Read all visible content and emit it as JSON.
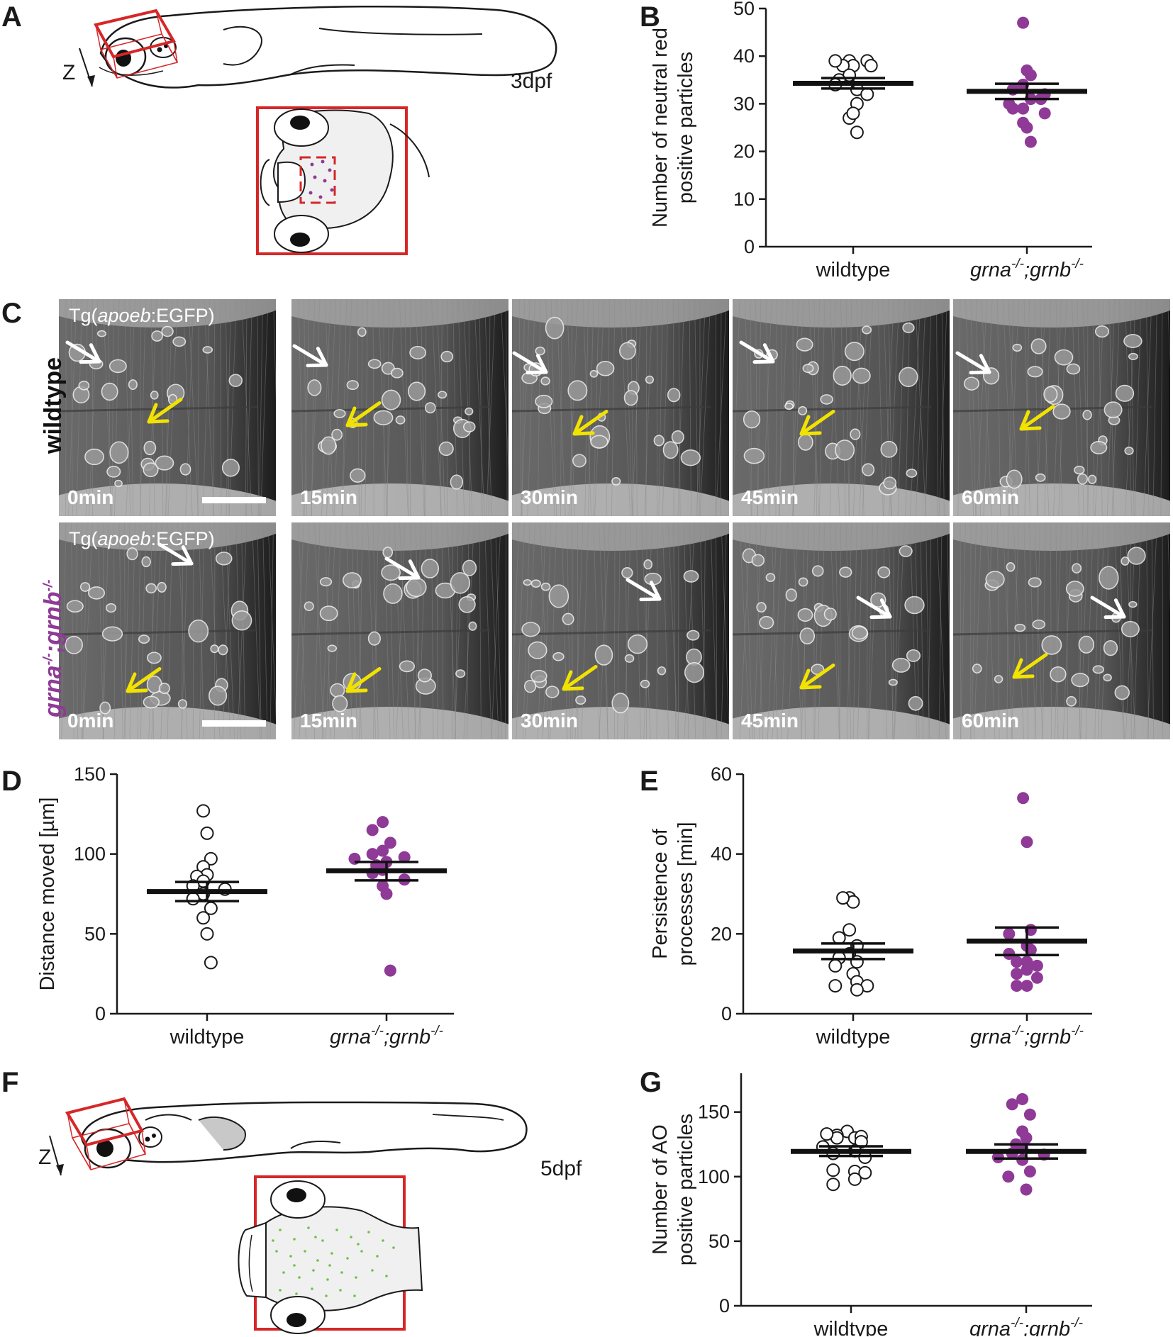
{
  "panels": {
    "A": {
      "letter": "A",
      "stage_label": "3dpf",
      "axis_label": "Z"
    },
    "B": {
      "letter": "B"
    },
    "C": {
      "letter": "C",
      "row_labels": {
        "wildtype": "wildtype",
        "mutant_main": "grna",
        "mutant_sup1": "-/-",
        "mutant_sep": ";",
        "mutant_main2": "grnb",
        "mutant_sup2": "-/-"
      },
      "transgene": {
        "prefix": "Tg(",
        "gene": "apoeb",
        "suffix": ":EGFP)"
      },
      "times": [
        "0min",
        "15min",
        "30min",
        "45min",
        "60min"
      ]
    },
    "D": {
      "letter": "D"
    },
    "E": {
      "letter": "E"
    },
    "F": {
      "letter": "F",
      "stage_label": "5dpf",
      "axis_label": "Z"
    },
    "G": {
      "letter": "G"
    }
  },
  "genotype_labels": {
    "wildtype": "wildtype",
    "mutant_a": "grna",
    "mutant_sup": "-/-",
    "mutant_sep": ";",
    "mutant_b": "grnb"
  },
  "colors": {
    "mutant": "#8e3a96",
    "wildtype_fill": "#ffffff",
    "box": "#d62728",
    "yellow_arrow": "#f2e200",
    "ao_dots": "#6cc24a"
  },
  "chart_data": [
    {
      "panel": "B",
      "type": "scatter",
      "ylabel_line1": "Number of neutral red",
      "ylabel_line2": "positive particles",
      "ylim": [
        0,
        50
      ],
      "yticks": [
        0,
        10,
        20,
        30,
        40,
        50
      ],
      "categories": [
        "wildtype",
        "grna-/-;grnb-/-"
      ],
      "series": [
        {
          "values": [
            39,
            38,
            38,
            39,
            39,
            38,
            36,
            35,
            33,
            34,
            32,
            30,
            27,
            28,
            24
          ],
          "mean": 34.3,
          "sem_range": [
            33.2,
            35.4
          ]
        },
        {
          "values": [
            47,
            37,
            36,
            34,
            33,
            31,
            30,
            31,
            32,
            29,
            29,
            28,
            26,
            25,
            22
          ],
          "mean": 32.6,
          "sem_range": [
            31.0,
            34.2
          ]
        }
      ]
    },
    {
      "panel": "D",
      "type": "scatter",
      "ylabel_line1": "Distance moved [µm]",
      "ylabel_line2": "",
      "ylim": [
        0,
        150
      ],
      "yticks": [
        0,
        50,
        100,
        150
      ],
      "categories": [
        "wildtype",
        "grna-/-;grnb-/-"
      ],
      "series": [
        {
          "values": [
            127,
            113,
            97,
            92,
            87,
            86,
            83,
            80,
            78,
            75,
            72,
            66,
            60,
            50,
            32
          ],
          "mean": 76.5,
          "sem_range": [
            70.5,
            82.5
          ]
        },
        {
          "values": [
            120,
            115,
            107,
            102,
            100,
            98,
            97,
            95,
            93,
            90,
            88,
            84,
            80,
            75,
            27
          ],
          "mean": 89.5,
          "sem_range": [
            83.5,
            95.0
          ]
        }
      ]
    },
    {
      "panel": "E",
      "type": "scatter",
      "ylabel_line1": "Persistence of",
      "ylabel_line2": "processes [min]",
      "ylim": [
        0,
        60
      ],
      "yticks": [
        0,
        20,
        40,
        60
      ],
      "categories": [
        "wildtype",
        "grna-/-;grnb-/-"
      ],
      "series": [
        {
          "values": [
            29,
            28,
            29,
            21,
            19,
            17,
            15,
            14,
            13,
            12,
            10,
            8,
            7,
            7,
            6
          ],
          "mean": 15.7,
          "sem_range": [
            13.7,
            17.6
          ]
        },
        {
          "values": [
            54,
            43,
            21,
            20,
            17,
            16,
            15,
            13,
            13,
            12,
            11,
            10,
            9,
            7,
            7
          ],
          "mean": 18.2,
          "sem_range": [
            14.7,
            21.6
          ]
        }
      ]
    },
    {
      "panel": "G",
      "type": "scatter",
      "ylabel_line1": "Number of AO",
      "ylabel_line2": "positive particles",
      "ylim": [
        0,
        180
      ],
      "yticks": [
        0,
        50,
        100,
        150
      ],
      "categories": [
        "wildtype",
        "grna-/-;grnb-/-"
      ],
      "series": [
        {
          "values": [
            135,
            132,
            130,
            131,
            130,
            133,
            127,
            123,
            120,
            118,
            115,
            104,
            105,
            103,
            98,
            94
          ],
          "mean": 119.5,
          "sem_range": [
            116.0,
            123.5
          ]
        },
        {
          "values": [
            160,
            156,
            148,
            135,
            130,
            125,
            122,
            118,
            117,
            113,
            115,
            104,
            100,
            90
          ],
          "mean": 119.5,
          "sem_range": [
            114.0,
            125.0
          ]
        }
      ]
    }
  ]
}
